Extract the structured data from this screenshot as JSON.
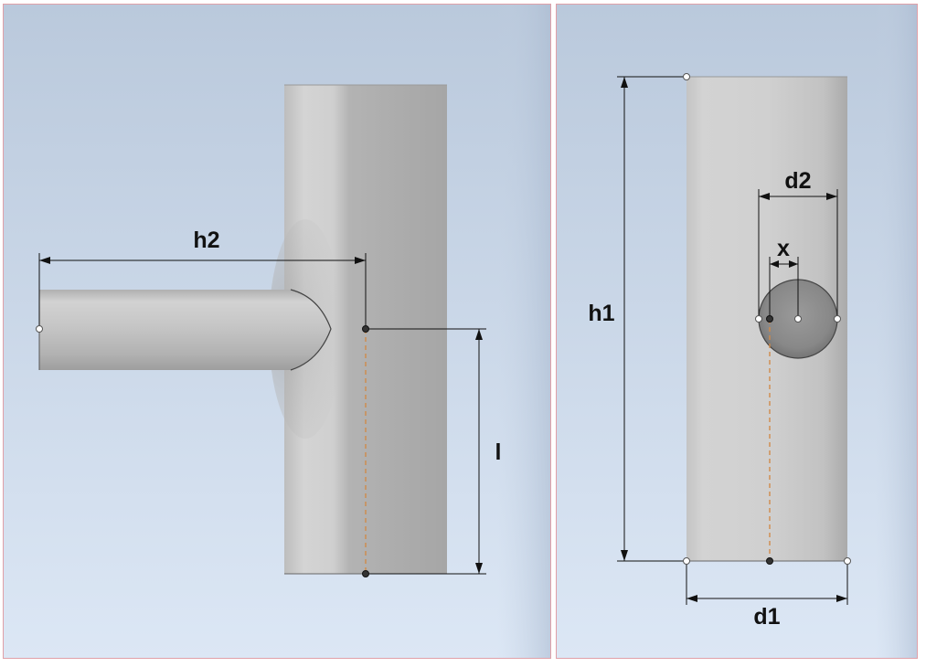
{
  "figure": {
    "side_view": {
      "labels": {
        "h2": "h2",
        "l": "l"
      }
    },
    "front_view": {
      "labels": {
        "h1": "h1",
        "d1": "d1",
        "d2": "d2",
        "x": "x"
      }
    }
  },
  "colors": {
    "background_top": "#bac9dc",
    "background_bottom": "#dce7f5",
    "cylinder_light": "#d2d2d2",
    "cylinder_dark": "#a9a9a9",
    "hole_fill": "#8a8a8a",
    "dimension_line": "#111111",
    "hidden_line": "#d08a4a",
    "panel_border": "#e0a0a8"
  }
}
